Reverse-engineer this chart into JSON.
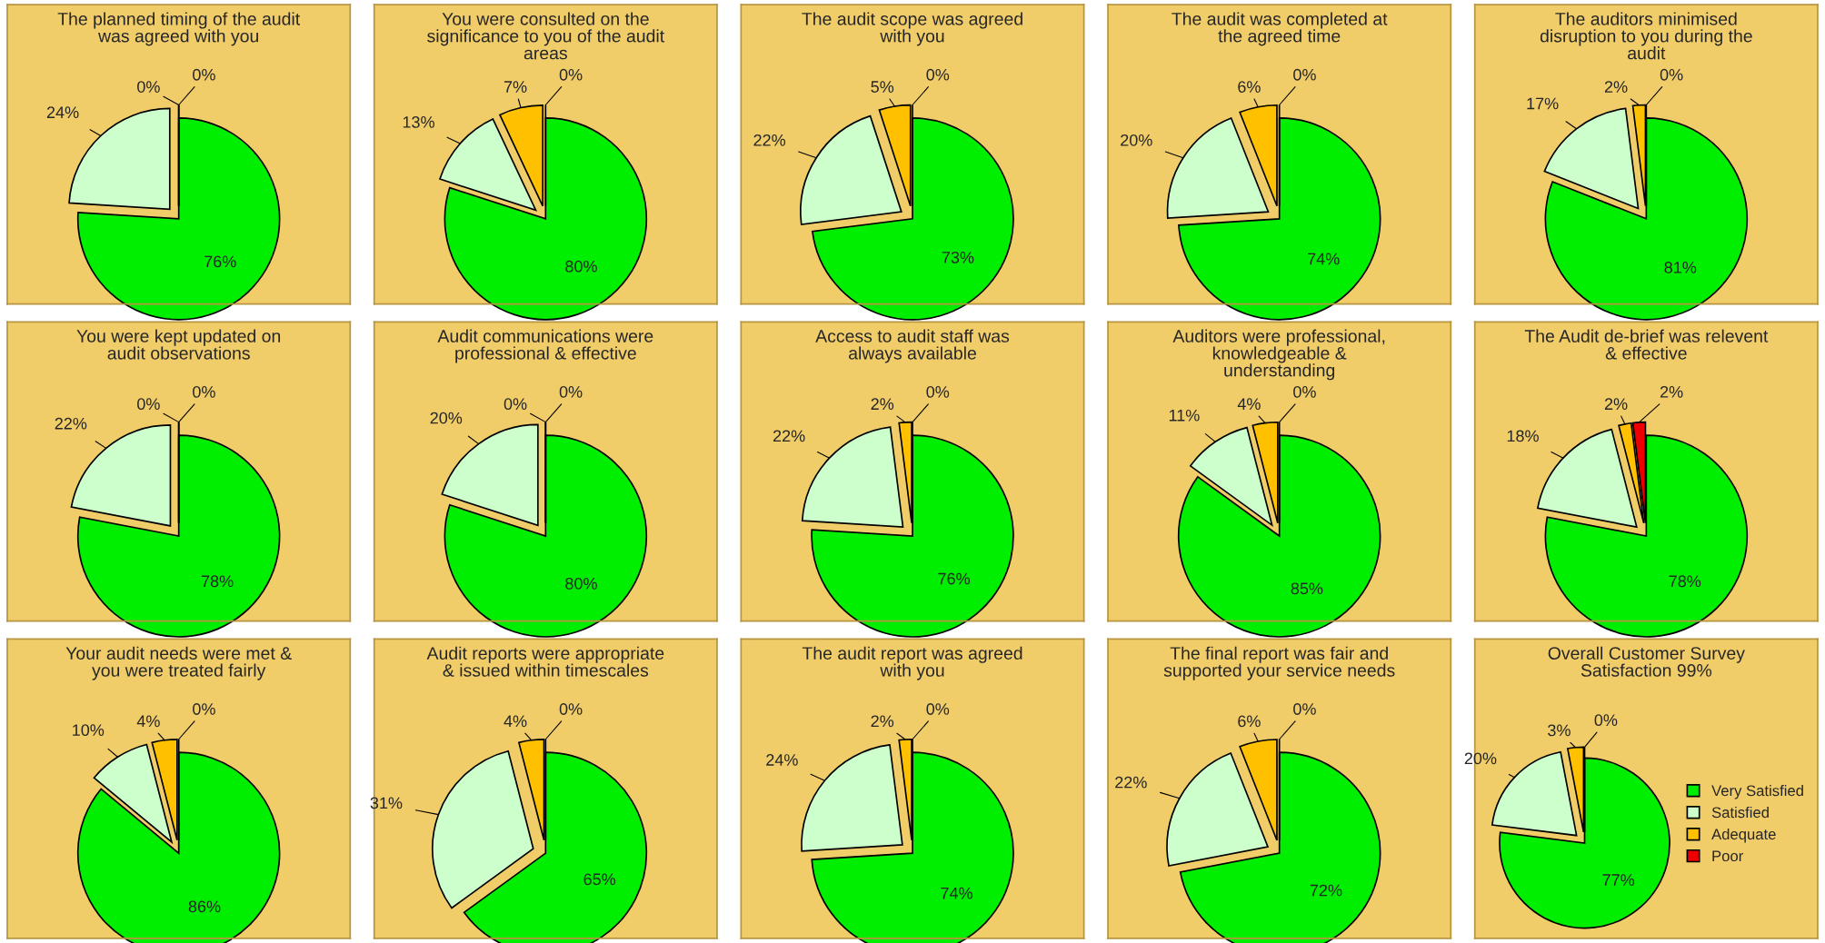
{
  "chart_data": [
    {
      "type": "pie",
      "title": "The planned timing of the audit was agreed with you",
      "categories": [
        null,
        null,
        null,
        null
      ],
      "values": [
        76,
        24,
        0,
        0
      ],
      "value_labels": [
        "76%",
        "24%",
        "0%",
        "0%"
      ],
      "colors": [
        "#00ee00",
        "#ccffcc",
        "#ffc000",
        "#ee0000"
      ],
      "legend": false
    },
    {
      "type": "pie",
      "title": "You were consulted on the significance to you of the audit areas",
      "categories": [
        null,
        null,
        null,
        null
      ],
      "values": [
        80,
        13,
        7,
        0
      ],
      "value_labels": [
        "80%",
        "13%",
        "7%",
        "0%"
      ],
      "colors": [
        "#00ee00",
        "#ccffcc",
        "#ffc000",
        "#ee0000"
      ],
      "legend": false
    },
    {
      "type": "pie",
      "title": "The audit scope was agreed with you",
      "categories": [
        null,
        null,
        null,
        null
      ],
      "values": [
        73,
        22,
        5,
        0
      ],
      "value_labels": [
        "73%",
        "22%",
        "5%",
        "0%"
      ],
      "colors": [
        "#00ee00",
        "#ccffcc",
        "#ffc000",
        "#ee0000"
      ],
      "legend": false
    },
    {
      "type": "pie",
      "title": "The audit was completed at the agreed time",
      "categories": [
        null,
        null,
        null,
        null
      ],
      "values": [
        74,
        20,
        6,
        0
      ],
      "value_labels": [
        "74%",
        "20%",
        "6%",
        "0%"
      ],
      "colors": [
        "#00ee00",
        "#ccffcc",
        "#ffc000",
        "#ee0000"
      ],
      "legend": false
    },
    {
      "type": "pie",
      "title": "The auditors minimised disruption to you during the audit",
      "categories": [
        null,
        null,
        null,
        null
      ],
      "values": [
        81,
        17,
        2,
        0
      ],
      "value_labels": [
        "81%",
        "17%",
        "2%",
        "0%"
      ],
      "colors": [
        "#00ee00",
        "#ccffcc",
        "#ffc000",
        "#ee0000"
      ],
      "legend": false
    },
    {
      "type": "pie",
      "title": "You were kept updated on audit observations",
      "categories": [
        null,
        null,
        null,
        null
      ],
      "values": [
        78,
        22,
        0,
        0
      ],
      "value_labels": [
        "78%",
        "22%",
        "0%",
        "0%"
      ],
      "colors": [
        "#00ee00",
        "#ccffcc",
        "#ffc000",
        "#ee0000"
      ],
      "legend": false
    },
    {
      "type": "pie",
      "title": "Audit communications were professional & effective",
      "categories": [
        null,
        null,
        null,
        null
      ],
      "values": [
        80,
        20,
        0,
        0
      ],
      "value_labels": [
        "80%",
        "20%",
        "0%",
        "0%"
      ],
      "colors": [
        "#00ee00",
        "#ccffcc",
        "#ffc000",
        "#ee0000"
      ],
      "legend": false
    },
    {
      "type": "pie",
      "title": "Access to audit staff was always available",
      "categories": [
        null,
        null,
        null,
        null
      ],
      "values": [
        76,
        22,
        2,
        0
      ],
      "value_labels": [
        "76%",
        "22%",
        "2%",
        "0%"
      ],
      "colors": [
        "#00ee00",
        "#ccffcc",
        "#ffc000",
        "#ee0000"
      ],
      "legend": false
    },
    {
      "type": "pie",
      "title": "Auditors were professional, knowledgeable & understanding",
      "categories": [
        null,
        null,
        null,
        null
      ],
      "values": [
        85,
        11,
        4,
        0
      ],
      "value_labels": [
        "85%",
        "11%",
        "4%",
        "0%"
      ],
      "colors": [
        "#00ee00",
        "#ccffcc",
        "#ffc000",
        "#ee0000"
      ],
      "legend": false
    },
    {
      "type": "pie",
      "title": "The Audit de-brief was relevent & effective",
      "categories": [
        null,
        null,
        null,
        null
      ],
      "values": [
        78,
        18,
        2,
        2
      ],
      "value_labels": [
        "78%",
        "18%",
        "2%",
        "2%"
      ],
      "colors": [
        "#00ee00",
        "#ccffcc",
        "#ffc000",
        "#ee0000"
      ],
      "legend": false
    },
    {
      "type": "pie",
      "title": "Your audit needs were met & you were treated fairly",
      "categories": [
        null,
        null,
        null,
        null
      ],
      "values": [
        86,
        10,
        4,
        0
      ],
      "value_labels": [
        "86%",
        "10%",
        "4%",
        "0%"
      ],
      "colors": [
        "#00ee00",
        "#ccffcc",
        "#ffc000",
        "#ee0000"
      ],
      "legend": false
    },
    {
      "type": "pie",
      "title": "Audit reports were appropriate & issued within timescales",
      "categories": [
        null,
        null,
        null,
        null
      ],
      "values": [
        65,
        31,
        4,
        0
      ],
      "value_labels": [
        "65%",
        "31%",
        "4%",
        "0%"
      ],
      "colors": [
        "#00ee00",
        "#ccffcc",
        "#ffc000",
        "#ee0000"
      ],
      "legend": false
    },
    {
      "type": "pie",
      "title": "The audit report was agreed with you",
      "categories": [
        null,
        null,
        null,
        null
      ],
      "values": [
        74,
        24,
        2,
        0
      ],
      "value_labels": [
        "74%",
        "24%",
        "2%",
        "0%"
      ],
      "colors": [
        "#00ee00",
        "#ccffcc",
        "#ffc000",
        "#ee0000"
      ],
      "legend": false
    },
    {
      "type": "pie",
      "title": "The final report was fair and supported your service needs",
      "categories": [
        null,
        null,
        null,
        null
      ],
      "values": [
        72,
        22,
        6,
        0
      ],
      "value_labels": [
        "72%",
        "22%",
        "6%",
        "0%"
      ],
      "colors": [
        "#00ee00",
        "#ccffcc",
        "#ffc000",
        "#ee0000"
      ],
      "legend": false
    },
    {
      "type": "pie",
      "title": "Overall Customer Survey Satisfaction 99%",
      "categories": [
        "Very Satisfied",
        "Satisfied",
        "Adequate",
        "Poor"
      ],
      "values": [
        77,
        20,
        3,
        0
      ],
      "value_labels": [
        "77%",
        "20%",
        "3%",
        "0%"
      ],
      "colors": [
        "#00ee00",
        "#ccffcc",
        "#ffc000",
        "#ee0000"
      ],
      "legend": "right"
    }
  ]
}
